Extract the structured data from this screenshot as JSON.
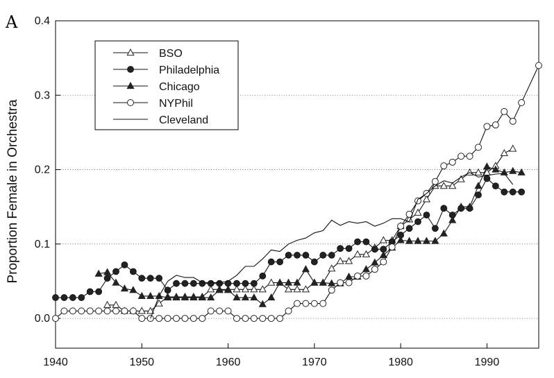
{
  "panel_label": "A",
  "chart_data": {
    "type": "line",
    "title": "",
    "xlabel": "",
    "ylabel": "Proportion Female in Orchestra",
    "xlim": [
      1940,
      1996
    ],
    "ylim": [
      -0.04,
      0.4
    ],
    "x_ticks": [
      "1940",
      "1950",
      "1960",
      "1970",
      "1980",
      "1990"
    ],
    "y_ticks": [
      "0.0",
      "0.1",
      "0.2",
      "0.3",
      "0.4"
    ],
    "grid": "horizontal dotted",
    "legend_position": "top-left",
    "series": [
      {
        "name": "BSO",
        "marker": "open-triangle",
        "points": [
          [
            1946,
            0.018
          ],
          [
            1947,
            0.018
          ],
          [
            1948,
            0.01
          ],
          [
            1949,
            0.01
          ],
          [
            1950,
            0.01
          ],
          [
            1951,
            0.01
          ],
          [
            1952,
            0.02
          ],
          [
            1953,
            0.029
          ],
          [
            1954,
            0.029
          ],
          [
            1955,
            0.029
          ],
          [
            1956,
            0.029
          ],
          [
            1957,
            0.029
          ],
          [
            1958,
            0.039
          ],
          [
            1959,
            0.039
          ],
          [
            1960,
            0.039
          ],
          [
            1961,
            0.039
          ],
          [
            1962,
            0.039
          ],
          [
            1963,
            0.039
          ],
          [
            1964,
            0.039
          ],
          [
            1965,
            0.048
          ],
          [
            1966,
            0.048
          ],
          [
            1967,
            0.039
          ],
          [
            1968,
            0.039
          ],
          [
            1969,
            0.039
          ],
          [
            1970,
            0.048
          ],
          [
            1971,
            0.048
          ],
          [
            1972,
            0.067
          ],
          [
            1973,
            0.077
          ],
          [
            1974,
            0.077
          ],
          [
            1975,
            0.086
          ],
          [
            1976,
            0.086
          ],
          [
            1977,
            0.095
          ],
          [
            1978,
            0.105
          ],
          [
            1979,
            0.105
          ],
          [
            1980,
            0.124
          ],
          [
            1981,
            0.133
          ],
          [
            1982,
            0.142
          ],
          [
            1983,
            0.16
          ],
          [
            1984,
            0.178
          ],
          [
            1985,
            0.178
          ],
          [
            1986,
            0.178
          ],
          [
            1987,
            0.187
          ],
          [
            1988,
            0.196
          ],
          [
            1989,
            0.196
          ],
          [
            1990,
            0.196
          ],
          [
            1991,
            0.205
          ],
          [
            1992,
            0.222
          ],
          [
            1993,
            0.228
          ]
        ]
      },
      {
        "name": "Philadelphia",
        "marker": "filled-circle",
        "points": [
          [
            1940,
            0.028
          ],
          [
            1941,
            0.028
          ],
          [
            1942,
            0.028
          ],
          [
            1943,
            0.028
          ],
          [
            1944,
            0.036
          ],
          [
            1945,
            0.036
          ],
          [
            1946,
            0.054
          ],
          [
            1947,
            0.063
          ],
          [
            1948,
            0.072
          ],
          [
            1949,
            0.063
          ],
          [
            1950,
            0.054
          ],
          [
            1951,
            0.054
          ],
          [
            1952,
            0.054
          ],
          [
            1953,
            0.038
          ],
          [
            1954,
            0.047
          ],
          [
            1955,
            0.047
          ],
          [
            1956,
            0.047
          ],
          [
            1957,
            0.047
          ],
          [
            1958,
            0.047
          ],
          [
            1959,
            0.047
          ],
          [
            1960,
            0.047
          ],
          [
            1961,
            0.047
          ],
          [
            1962,
            0.047
          ],
          [
            1963,
            0.047
          ],
          [
            1964,
            0.057
          ],
          [
            1965,
            0.076
          ],
          [
            1966,
            0.076
          ],
          [
            1967,
            0.085
          ],
          [
            1968,
            0.085
          ],
          [
            1969,
            0.085
          ],
          [
            1970,
            0.076
          ],
          [
            1971,
            0.085
          ],
          [
            1972,
            0.085
          ],
          [
            1973,
            0.094
          ],
          [
            1974,
            0.094
          ],
          [
            1975,
            0.103
          ],
          [
            1976,
            0.103
          ],
          [
            1977,
            0.093
          ],
          [
            1978,
            0.093
          ],
          [
            1979,
            0.103
          ],
          [
            1980,
            0.112
          ],
          [
            1981,
            0.121
          ],
          [
            1982,
            0.13
          ],
          [
            1983,
            0.139
          ],
          [
            1984,
            0.121
          ],
          [
            1985,
            0.148
          ],
          [
            1986,
            0.139
          ],
          [
            1987,
            0.148
          ],
          [
            1988,
            0.148
          ],
          [
            1989,
            0.166
          ],
          [
            1990,
            0.188
          ],
          [
            1991,
            0.178
          ],
          [
            1992,
            0.17
          ],
          [
            1993,
            0.17
          ],
          [
            1994,
            0.17
          ]
        ]
      },
      {
        "name": "Chicago",
        "marker": "filled-triangle",
        "points": [
          [
            1945,
            0.06
          ],
          [
            1946,
            0.062
          ],
          [
            1947,
            0.048
          ],
          [
            1948,
            0.04
          ],
          [
            1949,
            0.038
          ],
          [
            1950,
            0.03
          ],
          [
            1951,
            0.03
          ],
          [
            1952,
            0.03
          ],
          [
            1953,
            0.028
          ],
          [
            1954,
            0.028
          ],
          [
            1955,
            0.028
          ],
          [
            1956,
            0.028
          ],
          [
            1957,
            0.028
          ],
          [
            1958,
            0.028
          ],
          [
            1959,
            0.038
          ],
          [
            1960,
            0.038
          ],
          [
            1961,
            0.028
          ],
          [
            1962,
            0.028
          ],
          [
            1963,
            0.028
          ],
          [
            1964,
            0.019
          ],
          [
            1965,
            0.028
          ],
          [
            1966,
            0.048
          ],
          [
            1967,
            0.048
          ],
          [
            1968,
            0.048
          ],
          [
            1969,
            0.066
          ],
          [
            1970,
            0.048
          ],
          [
            1971,
            0.048
          ],
          [
            1972,
            0.047
          ],
          [
            1973,
            0.047
          ],
          [
            1974,
            0.056
          ],
          [
            1975,
            0.056
          ],
          [
            1976,
            0.066
          ],
          [
            1977,
            0.075
          ],
          [
            1978,
            0.085
          ],
          [
            1979,
            0.095
          ],
          [
            1980,
            0.105
          ],
          [
            1981,
            0.104
          ],
          [
            1982,
            0.104
          ],
          [
            1983,
            0.104
          ],
          [
            1984,
            0.104
          ],
          [
            1985,
            0.114
          ],
          [
            1986,
            0.132
          ],
          [
            1987,
            0.15
          ],
          [
            1988,
            0.15
          ],
          [
            1989,
            0.178
          ],
          [
            1990,
            0.204
          ],
          [
            1991,
            0.2
          ],
          [
            1992,
            0.196
          ],
          [
            1993,
            0.198
          ],
          [
            1994,
            0.196
          ]
        ]
      },
      {
        "name": "NYPhil",
        "marker": "open-circle",
        "points": [
          [
            1940,
            0.0
          ],
          [
            1941,
            0.01
          ],
          [
            1942,
            0.01
          ],
          [
            1943,
            0.01
          ],
          [
            1944,
            0.01
          ],
          [
            1945,
            0.01
          ],
          [
            1946,
            0.01
          ],
          [
            1947,
            0.01
          ],
          [
            1948,
            0.01
          ],
          [
            1949,
            0.01
          ],
          [
            1950,
            0.0
          ],
          [
            1951,
            0.0
          ],
          [
            1952,
            0.0
          ],
          [
            1953,
            0.0
          ],
          [
            1954,
            0.0
          ],
          [
            1955,
            0.0
          ],
          [
            1956,
            0.0
          ],
          [
            1957,
            0.0
          ],
          [
            1958,
            0.01
          ],
          [
            1959,
            0.01
          ],
          [
            1960,
            0.01
          ],
          [
            1961,
            0.0
          ],
          [
            1962,
            0.0
          ],
          [
            1963,
            0.0
          ],
          [
            1964,
            0.0
          ],
          [
            1965,
            0.0
          ],
          [
            1966,
            0.0
          ],
          [
            1967,
            0.01
          ],
          [
            1968,
            0.02
          ],
          [
            1969,
            0.02
          ],
          [
            1970,
            0.02
          ],
          [
            1971,
            0.02
          ],
          [
            1972,
            0.038
          ],
          [
            1973,
            0.048
          ],
          [
            1974,
            0.048
          ],
          [
            1975,
            0.057
          ],
          [
            1976,
            0.057
          ],
          [
            1977,
            0.066
          ],
          [
            1978,
            0.076
          ],
          [
            1979,
            0.096
          ],
          [
            1980,
            0.124
          ],
          [
            1981,
            0.14
          ],
          [
            1982,
            0.158
          ],
          [
            1983,
            0.168
          ],
          [
            1984,
            0.184
          ],
          [
            1985,
            0.205
          ],
          [
            1986,
            0.21
          ],
          [
            1987,
            0.218
          ],
          [
            1988,
            0.218
          ],
          [
            1989,
            0.23
          ],
          [
            1990,
            0.258
          ],
          [
            1991,
            0.26
          ],
          [
            1992,
            0.278
          ],
          [
            1993,
            0.265
          ],
          [
            1994,
            0.29
          ],
          [
            1996,
            0.34
          ]
        ]
      },
      {
        "name": "Cleveland",
        "marker": "none",
        "points": [
          [
            1951,
            0.0
          ],
          [
            1952,
            0.03
          ],
          [
            1953,
            0.05
          ],
          [
            1954,
            0.058
          ],
          [
            1955,
            0.055
          ],
          [
            1956,
            0.055
          ],
          [
            1957,
            0.048
          ],
          [
            1958,
            0.048
          ],
          [
            1959,
            0.048
          ],
          [
            1960,
            0.05
          ],
          [
            1961,
            0.058
          ],
          [
            1962,
            0.07
          ],
          [
            1963,
            0.07
          ],
          [
            1964,
            0.08
          ],
          [
            1965,
            0.092
          ],
          [
            1966,
            0.09
          ],
          [
            1967,
            0.1
          ],
          [
            1968,
            0.105
          ],
          [
            1969,
            0.108
          ],
          [
            1970,
            0.115
          ],
          [
            1971,
            0.118
          ],
          [
            1972,
            0.132
          ],
          [
            1973,
            0.125
          ],
          [
            1974,
            0.13
          ],
          [
            1975,
            0.128
          ],
          [
            1976,
            0.13
          ],
          [
            1977,
            0.124
          ],
          [
            1978,
            0.128
          ],
          [
            1979,
            0.134
          ],
          [
            1980,
            0.134
          ],
          [
            1981,
            0.13
          ],
          [
            1982,
            0.16
          ],
          [
            1983,
            0.168
          ],
          [
            1984,
            0.178
          ],
          [
            1985,
            0.185
          ],
          [
            1986,
            0.182
          ],
          [
            1987,
            0.19
          ],
          [
            1988,
            0.196
          ],
          [
            1989,
            0.19
          ],
          [
            1990,
            0.192
          ],
          [
            1991,
            0.194
          ],
          [
            1992,
            0.195
          ],
          [
            1993,
            0.18
          ]
        ]
      }
    ]
  }
}
